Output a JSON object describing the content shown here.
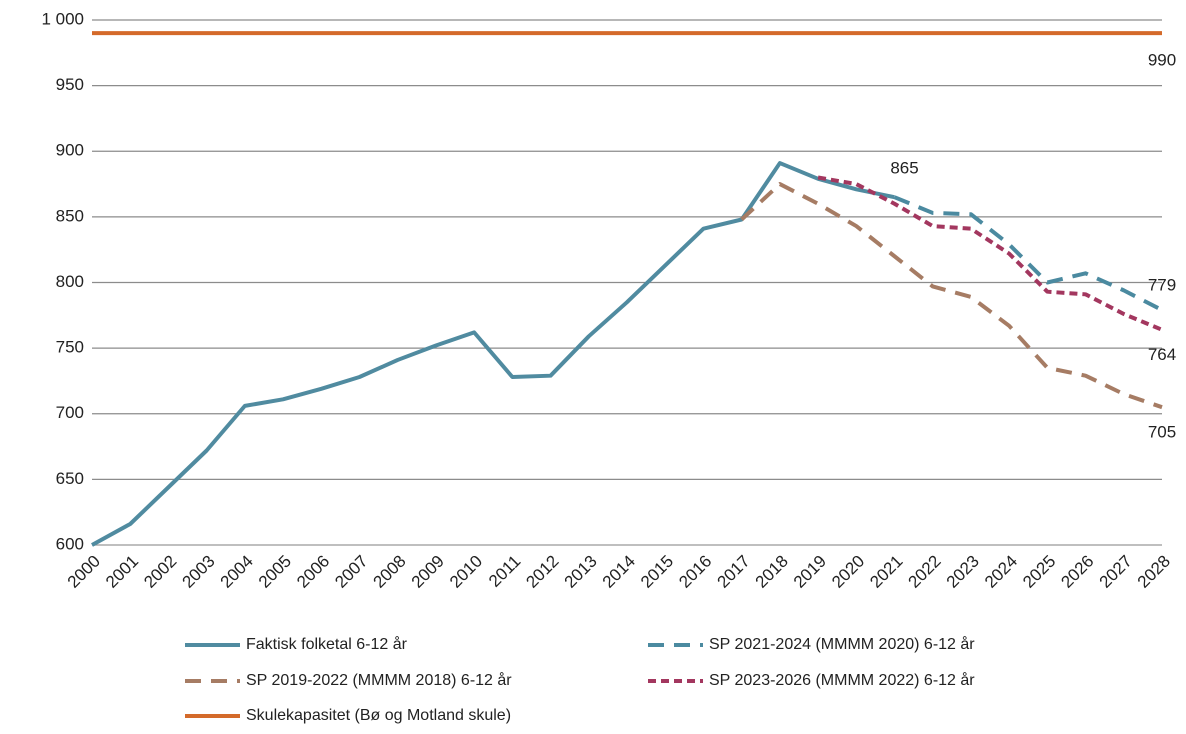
{
  "chart_data": {
    "type": "line",
    "categories": [
      "2000",
      "2001",
      "2002",
      "2003",
      "2004",
      "2005",
      "2006",
      "2007",
      "2008",
      "2009",
      "2010",
      "2011",
      "2012",
      "2013",
      "2014",
      "2015",
      "2016",
      "2017",
      "2018",
      "2019",
      "2020",
      "2021",
      "2022",
      "2023",
      "2024",
      "2025",
      "2026",
      "2027",
      "2028"
    ],
    "series": [
      {
        "name": "Faktisk folketal 6-12 år",
        "color": "#508ba0",
        "dash": "solid",
        "label_at": 21,
        "values": [
          600,
          616,
          644,
          672,
          706,
          711,
          719,
          728,
          741,
          752,
          762,
          728,
          729,
          759,
          785,
          813,
          841,
          848,
          891,
          879,
          871,
          865,
          null,
          null,
          null,
          null,
          null,
          null,
          null
        ]
      },
      {
        "name": "SP 2021-2024 (MMMM 2020) 6-12 år",
        "color": "#4b8aa0",
        "dash": "dashed",
        "label_at": 28,
        "values": [
          null,
          null,
          null,
          null,
          null,
          null,
          null,
          null,
          null,
          null,
          null,
          null,
          null,
          null,
          null,
          null,
          null,
          null,
          null,
          null,
          null,
          865,
          853,
          852,
          829,
          800,
          807,
          794,
          779
        ]
      },
      {
        "name": "SP 2019-2022 (MMMM 2018) 6-12 år",
        "color": "#a67c64",
        "dash": "dashed",
        "label_at": 28,
        "values": [
          null,
          null,
          null,
          null,
          null,
          null,
          null,
          null,
          null,
          null,
          null,
          null,
          null,
          null,
          null,
          null,
          null,
          848,
          875,
          860,
          843,
          820,
          797,
          789,
          767,
          735,
          729,
          715,
          705
        ]
      },
      {
        "name": "SP 2023-2026 (MMMM 2022) 6-12 år",
        "color": "#a3375f",
        "dash": "dotted",
        "label_at": 28,
        "values": [
          null,
          null,
          null,
          null,
          null,
          null,
          null,
          null,
          null,
          null,
          null,
          null,
          null,
          null,
          null,
          null,
          null,
          null,
          null,
          880,
          875,
          860,
          843,
          841,
          822,
          793,
          791,
          776,
          764
        ]
      },
      {
        "name": "Skulekapasitet (Bø og Motland skule)",
        "color": "#d46a2a",
        "dash": "solid",
        "label_at": 28,
        "values": [
          990,
          990,
          990,
          990,
          990,
          990,
          990,
          990,
          990,
          990,
          990,
          990,
          990,
          990,
          990,
          990,
          990,
          990,
          990,
          990,
          990,
          990,
          990,
          990,
          990,
          990,
          990,
          990,
          990
        ]
      }
    ],
    "ylim": [
      600,
      1000
    ],
    "yticks": [
      600,
      650,
      700,
      750,
      800,
      850,
      900,
      950,
      {
        "value": 1000,
        "label": "1 000"
      }
    ],
    "grid": true
  }
}
